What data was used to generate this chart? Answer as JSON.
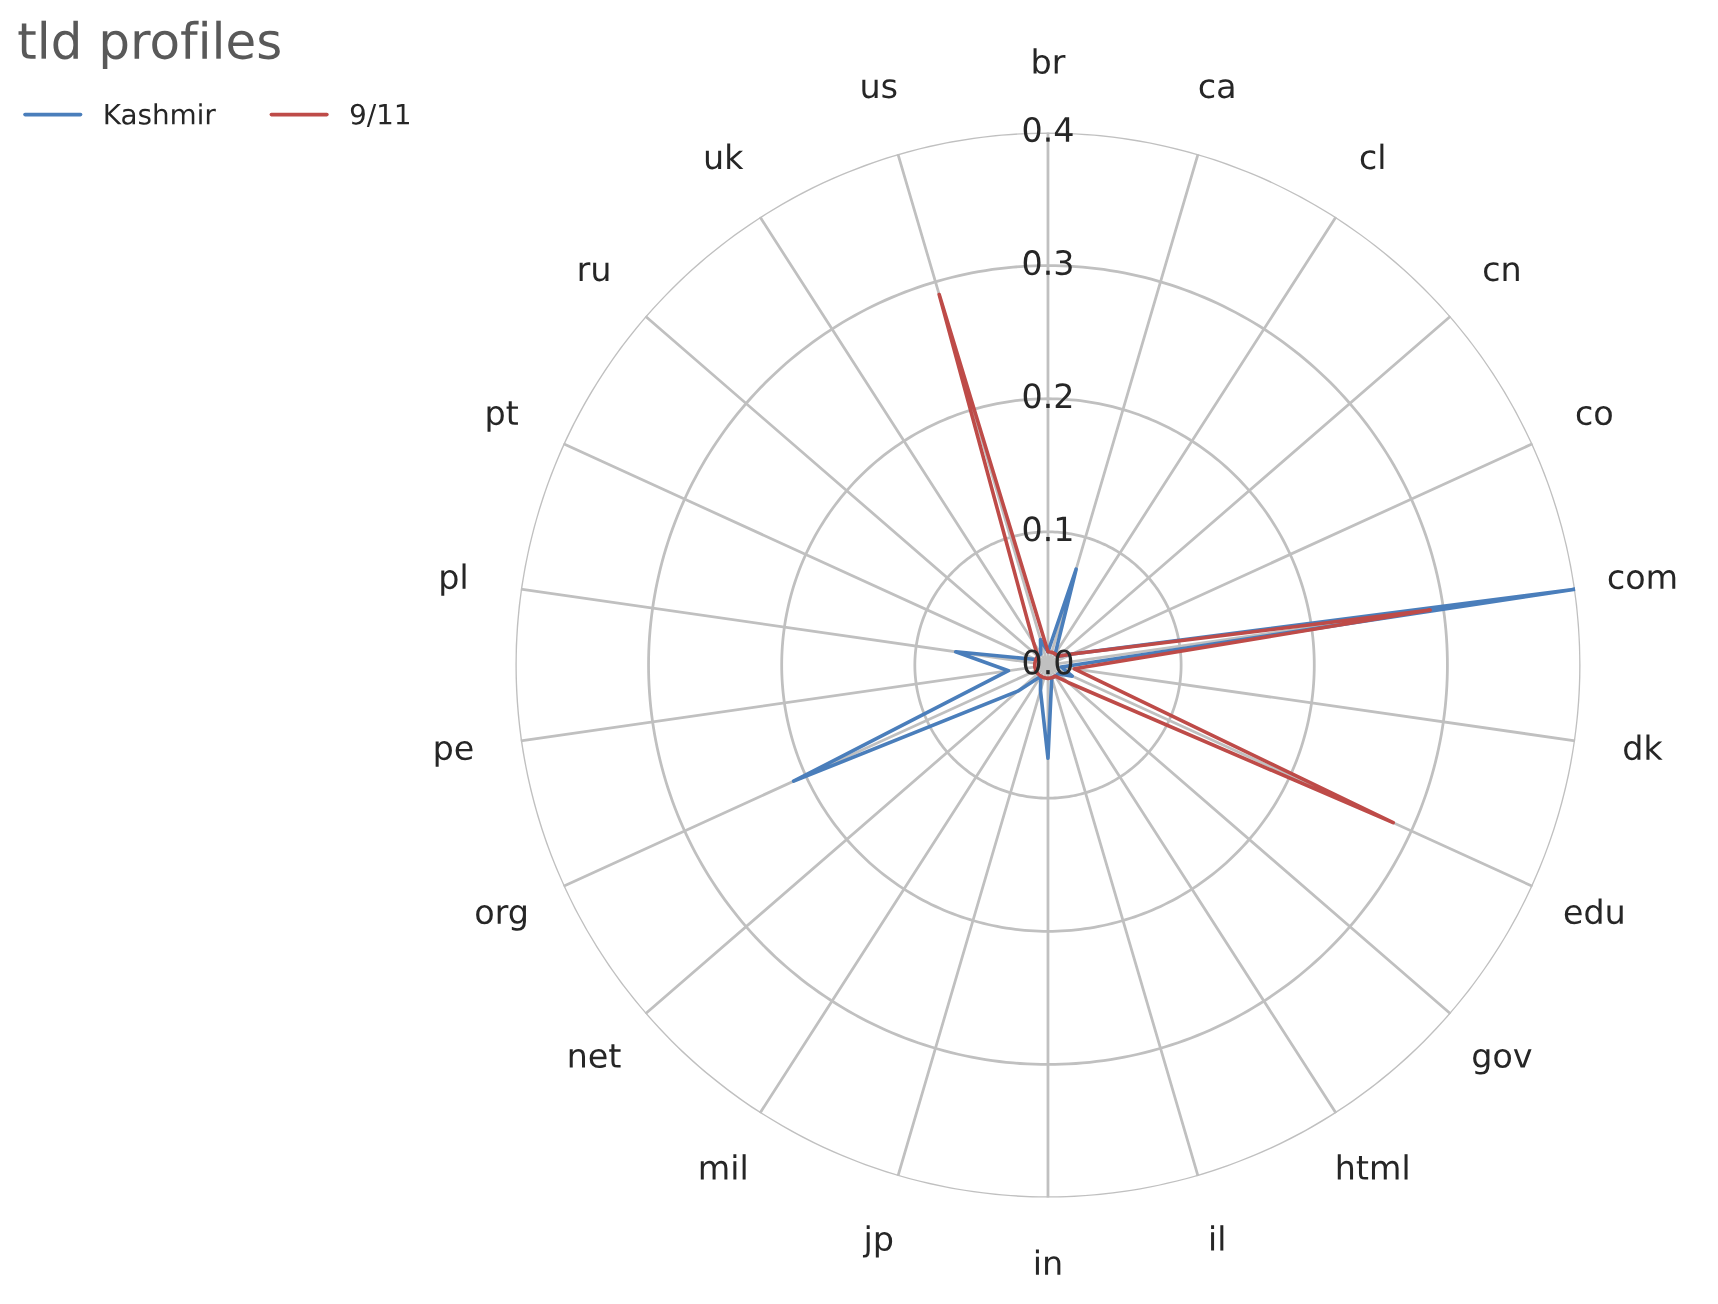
{
  "chart_data": {
    "type": "radar",
    "title": "tld profiles",
    "categories": [
      "br",
      "ca",
      "cl",
      "cn",
      "co",
      "com",
      "dk",
      "edu",
      "gov",
      "html",
      "il",
      "in",
      "jp",
      "mil",
      "net",
      "org",
      "pe",
      "pl",
      "pt",
      "ru",
      "uk",
      "us"
    ],
    "series": [
      {
        "name": "Kashmir",
        "color": "#4a7ebb",
        "values": [
          0.01,
          0.075,
          0.01,
          0.01,
          0.02,
          0.4,
          0.01,
          0.02,
          0.01,
          0.01,
          0.01,
          0.07,
          0.02,
          0.01,
          0.03,
          0.21,
          0.03,
          0.07,
          0.01,
          0.01,
          0.01,
          0.02
        ]
      },
      {
        "name": "9/11",
        "color": "#be4b48",
        "values": [
          0.01,
          0.01,
          0.01,
          0.01,
          0.02,
          0.29,
          0.02,
          0.285,
          0.02,
          0.01,
          0.01,
          0.01,
          0.01,
          0.01,
          0.01,
          0.01,
          0.01,
          0.01,
          0.01,
          0.01,
          0.02,
          0.29
        ]
      }
    ],
    "ylim": [
      0,
      0.4
    ],
    "yticks": [
      {
        "value": 0,
        "label": "0.0"
      },
      0.1,
      0.2,
      0.3,
      0.4
    ],
    "grid": true,
    "legend": "top left",
    "marker": "none"
  }
}
